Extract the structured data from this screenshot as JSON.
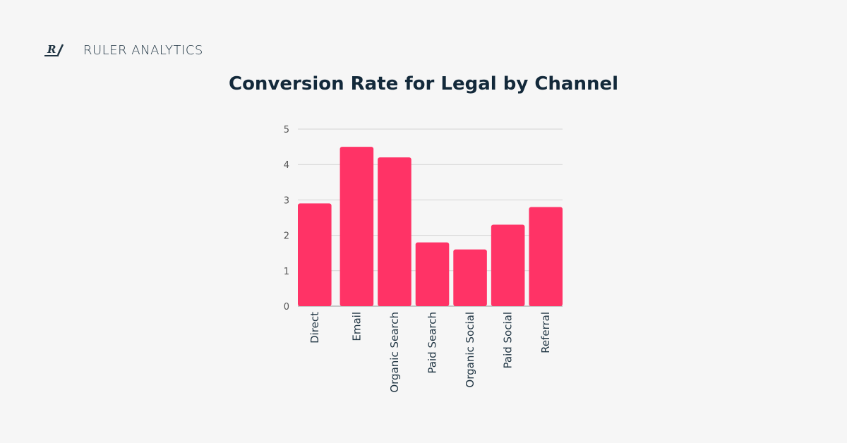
{
  "brand": {
    "name": "RULER ANALYTICS",
    "logo_text": "R/"
  },
  "chart_data": {
    "type": "bar",
    "title": "Conversion Rate for Legal by Channel",
    "categories": [
      "Direct",
      "Email",
      "Organic Search",
      "Paid Search",
      "Organic Social",
      "Paid Social",
      "Referral"
    ],
    "values": [
      2.9,
      4.5,
      4.2,
      1.8,
      1.6,
      2.3,
      2.8
    ],
    "ylim": [
      0,
      5
    ],
    "yticks": [
      0,
      1,
      2,
      3,
      4,
      5
    ],
    "xlabel": "",
    "ylabel": "",
    "grid": true,
    "legend": "none",
    "bar_color": "#ff3366"
  }
}
